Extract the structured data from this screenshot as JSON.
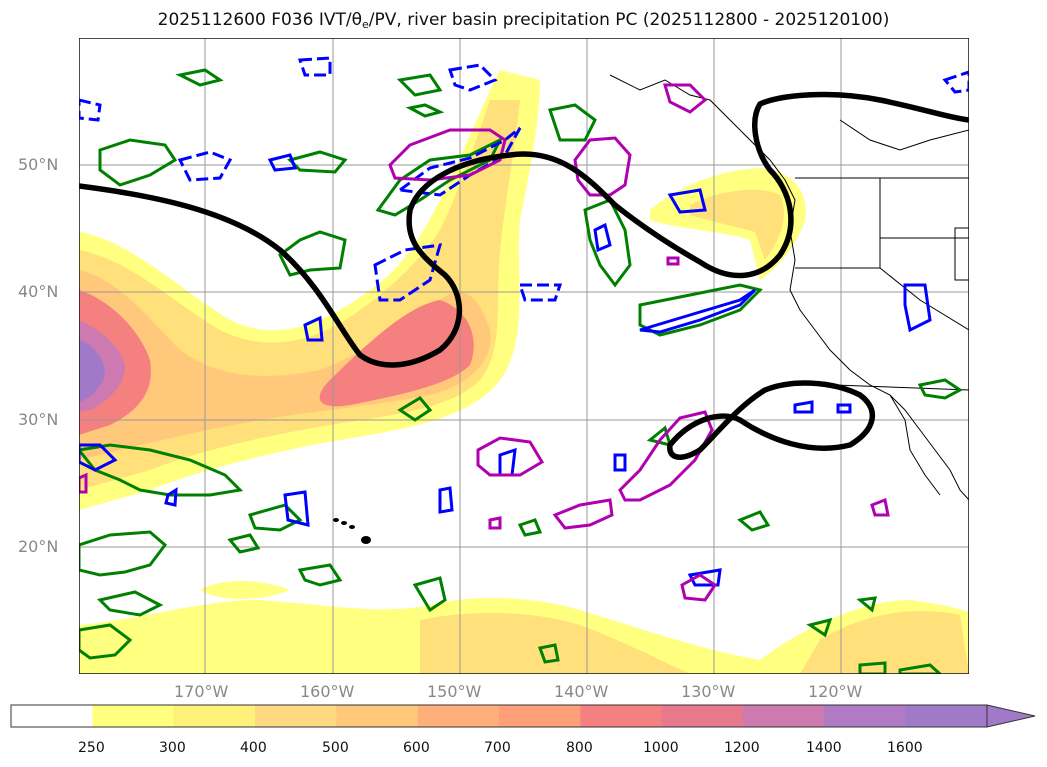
{
  "title": {
    "prefix": "2025112600 F036 IVT/θ",
    "subscript": "e",
    "suffix": "/PV, river basin precipitation PC (2025112800 - 2025120100)"
  },
  "map": {
    "lat_labels": [
      "50°N",
      "40°N",
      "30°N",
      "20°N"
    ],
    "lon_labels": [
      "170°W",
      "160°W",
      "150°W",
      "140°W",
      "130°W",
      "120°W"
    ]
  },
  "colorbar": {
    "ticks": [
      "250",
      "300",
      "400",
      "500",
      "600",
      "700",
      "800",
      "1000",
      "1200",
      "1400",
      "1600"
    ],
    "colors": [
      "#ffffff",
      "#ffff80",
      "#fff07a",
      "#ffd980",
      "#ffc87a",
      "#ffb07a",
      "#ff9f7a",
      "#f58080",
      "#e67a8c",
      "#cc7ab0",
      "#b07ac4",
      "#a07ac8"
    ]
  },
  "colors": {
    "ridge_line": "#000000",
    "green_contour": "#008000",
    "blue_contour": "#0000ff",
    "magenta_contour": "#b000b0",
    "gridline": "#999999"
  }
}
